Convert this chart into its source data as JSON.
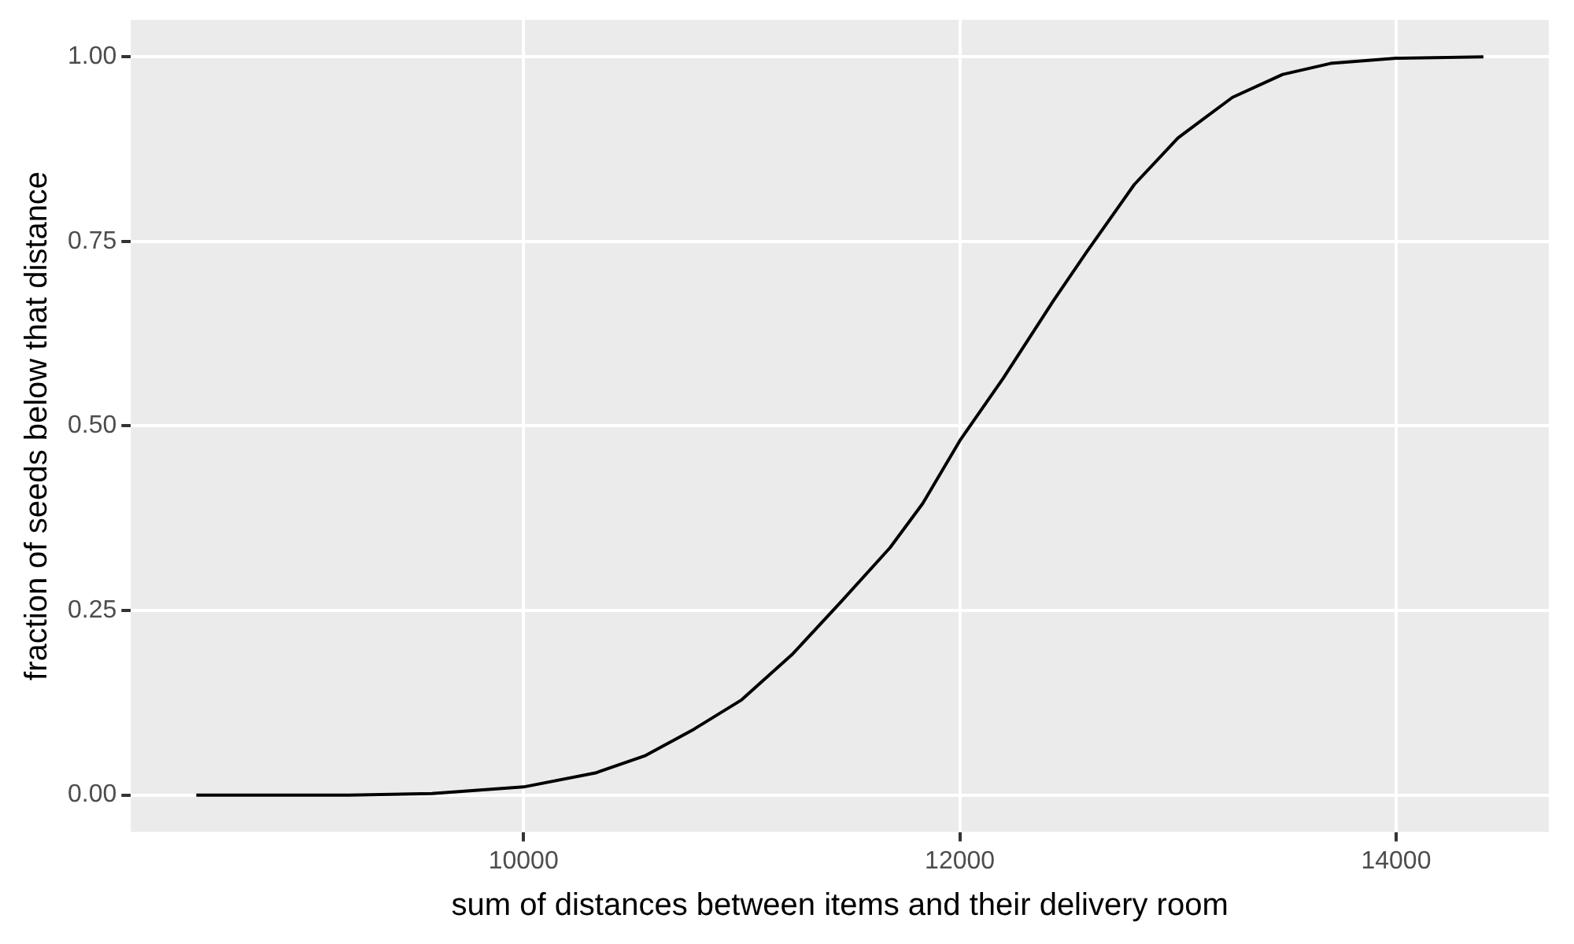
{
  "chart_data": {
    "type": "line",
    "xlabel": "sum of distances between items and their delivery room",
    "ylabel": "fraction of seeds below that distance",
    "series": [
      {
        "color": "#000000",
        "x": [
          8500,
          9200,
          9580,
          10000,
          10330,
          10555,
          10780,
          11000,
          11230,
          11450,
          11680,
          11830,
          12000,
          12200,
          12430,
          12580,
          12800,
          13000,
          13250,
          13480,
          13700,
          14000,
          14400
        ],
        "values": [
          0,
          0,
          0.002,
          0.011,
          0.03,
          0.053,
          0.089,
          0.129,
          0.19,
          0.26,
          0.335,
          0.395,
          0.48,
          0.565,
          0.67,
          0.735,
          0.827,
          0.89,
          0.945,
          0.976,
          0.991,
          0.998,
          1
        ]
      }
    ],
    "xlim": [
      8200,
      14700
    ],
    "xticks": [
      10000,
      12000,
      14000
    ],
    "ylim": [
      -0.05,
      1.05
    ],
    "yticks": [
      {
        "value": 0,
        "label": "0.00"
      },
      {
        "value": 0.25,
        "label": "0.25"
      },
      {
        "value": 0.5,
        "label": "0.50"
      },
      {
        "value": 0.75,
        "label": "0.75"
      },
      {
        "value": 1,
        "label": "1.00"
      }
    ],
    "grid": true,
    "legend": false,
    "marker": "none",
    "line_style": "solid"
  }
}
